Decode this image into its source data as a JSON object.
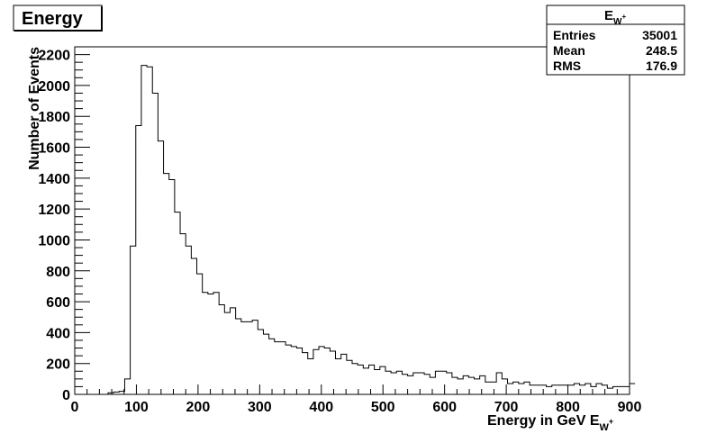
{
  "chart_data": {
    "type": "histogram",
    "title": "Energy",
    "xlabel_main": "Energy in GeV E",
    "xlabel_sub": "W",
    "xlabel_sup": "+",
    "ylabel": "Number of Events",
    "xlim": [
      0,
      900
    ],
    "ylim": [
      0,
      2250
    ],
    "x_ticks": [
      0,
      100,
      200,
      300,
      400,
      500,
      600,
      700,
      800,
      900
    ],
    "y_ticks": [
      0,
      200,
      400,
      600,
      800,
      1000,
      1200,
      1400,
      1600,
      1800,
      2000,
      2200
    ],
    "bin_width": 9,
    "stats": {
      "name_main": "E",
      "name_sub": "W",
      "name_sup": "+",
      "rows": [
        {
          "label": "Entries",
          "value": "35001"
        },
        {
          "label": "Mean",
          "value": "248.5"
        },
        {
          "label": "RMS",
          "value": "176.9"
        }
      ]
    },
    "values": [
      0,
      0,
      0,
      0,
      0,
      0,
      10,
      15,
      20,
      100,
      960,
      1740,
      2130,
      2120,
      1950,
      1640,
      1430,
      1390,
      1180,
      1040,
      960,
      880,
      780,
      660,
      650,
      660,
      580,
      530,
      560,
      490,
      470,
      470,
      480,
      420,
      390,
      360,
      340,
      340,
      320,
      310,
      300,
      270,
      230,
      290,
      310,
      300,
      280,
      230,
      260,
      220,
      200,
      190,
      170,
      190,
      160,
      180,
      150,
      140,
      150,
      130,
      120,
      140,
      140,
      130,
      110,
      150,
      150,
      140,
      110,
      100,
      120,
      110,
      100,
      120,
      80,
      80,
      140,
      100,
      70,
      80,
      70,
      80,
      60,
      60,
      60,
      50,
      60,
      60,
      60,
      60,
      70,
      60,
      70,
      50,
      70,
      60,
      40,
      50,
      50,
      50,
      70
    ]
  }
}
